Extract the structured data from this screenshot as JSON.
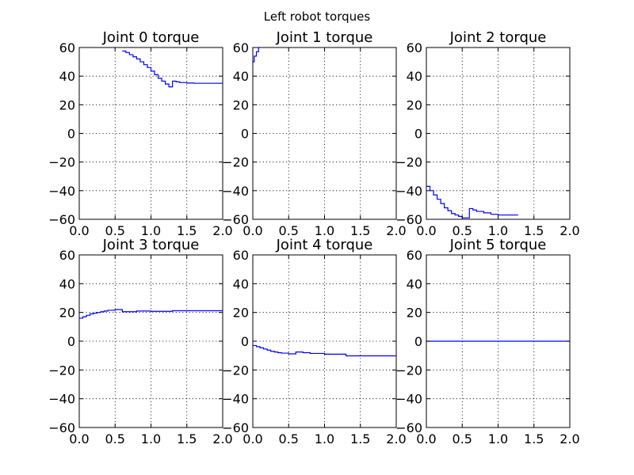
{
  "figure": {
    "suptitle": "Left robot torques"
  },
  "style": {
    "line_color": "#0000ff",
    "grid": true,
    "background": "#ffffff"
  },
  "chart_data": [
    {
      "type": "line",
      "title": "Joint 0 torque",
      "xlabel": "",
      "ylabel": "",
      "xlim": [
        0,
        2
      ],
      "ylim": [
        -60,
        60
      ],
      "grid": true,
      "step": true,
      "xticks": [
        "0.0",
        "0.5",
        "1.0",
        "1.5",
        "2.0"
      ],
      "yticks": [
        "−60",
        "−40",
        "−20",
        "0",
        "20",
        "40",
        "60"
      ],
      "series": [
        {
          "x": [
            0.6,
            0.65,
            0.7,
            0.75,
            0.8,
            0.85,
            0.9,
            0.95,
            1.0,
            1.05,
            1.1,
            1.15,
            1.2,
            1.25,
            1.3,
            1.35,
            1.4,
            1.5,
            1.6,
            1.7,
            2.0
          ],
          "y": [
            57.5,
            56.5,
            55.0,
            53.5,
            52.0,
            50.0,
            48.0,
            46.0,
            43.5,
            41.0,
            38.5,
            36.5,
            34.5,
            32.5,
            36.5,
            36.0,
            35.5,
            35.2,
            35.0,
            35.0,
            35.0
          ]
        }
      ]
    },
    {
      "type": "line",
      "title": "Joint 1 torque",
      "xlabel": "",
      "ylabel": "",
      "xlim": [
        0,
        2
      ],
      "ylim": [
        -60,
        60
      ],
      "grid": true,
      "step": true,
      "xticks": [
        "0.0",
        "0.5",
        "1.0",
        "1.5",
        "2.0"
      ],
      "yticks": [
        "−60",
        "−40",
        "−20",
        "0",
        "20",
        "40",
        "60"
      ],
      "series": [
        {
          "x": [
            0.0,
            0.02,
            0.05,
            0.08,
            0.1
          ],
          "y": [
            50,
            54,
            57,
            60,
            60
          ]
        }
      ]
    },
    {
      "type": "line",
      "title": "Joint 2 torque",
      "xlabel": "",
      "ylabel": "",
      "xlim": [
        0,
        2
      ],
      "ylim": [
        -60,
        60
      ],
      "grid": true,
      "step": true,
      "xticks": [
        "0.0",
        "0.5",
        "1.0",
        "1.5",
        "2.0"
      ],
      "yticks": [
        "−60",
        "−40",
        "−20",
        "0",
        "20",
        "40",
        "60"
      ],
      "series": [
        {
          "x": [
            0.0,
            0.05,
            0.1,
            0.15,
            0.2,
            0.25,
            0.3,
            0.35,
            0.4,
            0.45,
            0.5,
            0.55,
            0.6,
            0.65,
            0.7,
            0.8,
            0.9,
            1.0,
            1.1,
            1.2,
            1.28
          ],
          "y": [
            -37,
            -40,
            -43,
            -46,
            -49,
            -52,
            -54,
            -56,
            -57,
            -58,
            -59,
            -59,
            -52.5,
            -53.5,
            -54.5,
            -55.5,
            -56.5,
            -57,
            -57,
            -57,
            -57
          ]
        }
      ]
    },
    {
      "type": "line",
      "title": "Joint 3 torque",
      "xlabel": "",
      "ylabel": "",
      "xlim": [
        0,
        2
      ],
      "ylim": [
        -60,
        60
      ],
      "grid": true,
      "step": true,
      "xticks": [
        "0.0",
        "0.5",
        "1.0",
        "1.5",
        "2.0"
      ],
      "yticks": [
        "−60",
        "−40",
        "−20",
        "0",
        "20",
        "40",
        "60"
      ],
      "series": [
        {
          "x": [
            0.0,
            0.05,
            0.1,
            0.15,
            0.2,
            0.25,
            0.3,
            0.35,
            0.4,
            0.5,
            0.6,
            0.7,
            0.8,
            1.0,
            1.3,
            2.0
          ],
          "y": [
            16,
            17,
            18,
            19,
            19.5,
            20,
            20.5,
            21,
            21.5,
            22,
            20.5,
            20.5,
            21,
            20.8,
            21.2,
            21.2
          ]
        }
      ]
    },
    {
      "type": "line",
      "title": "Joint 4 torque",
      "xlabel": "",
      "ylabel": "",
      "xlim": [
        0,
        2
      ],
      "ylim": [
        -60,
        60
      ],
      "grid": true,
      "step": true,
      "xticks": [
        "0.0",
        "0.5",
        "1.0",
        "1.5",
        "2.0"
      ],
      "yticks": [
        "−60",
        "−40",
        "−20",
        "0",
        "20",
        "40",
        "60"
      ],
      "series": [
        {
          "x": [
            0.0,
            0.05,
            0.1,
            0.15,
            0.2,
            0.25,
            0.3,
            0.35,
            0.4,
            0.5,
            0.6,
            0.7,
            0.8,
            1.0,
            1.3,
            2.0
          ],
          "y": [
            -3,
            -3.8,
            -4.6,
            -5.4,
            -6.2,
            -7,
            -7.5,
            -8,
            -8.3,
            -8.8,
            -7.5,
            -8,
            -8.5,
            -9,
            -10.2,
            -10.2
          ]
        }
      ]
    },
    {
      "type": "line",
      "title": "Joint 5 torque",
      "xlabel": "",
      "ylabel": "",
      "xlim": [
        0,
        2
      ],
      "ylim": [
        -60,
        60
      ],
      "grid": true,
      "step": true,
      "xticks": [
        "0.0",
        "0.5",
        "1.0",
        "1.5",
        "2.0"
      ],
      "yticks": [
        "−60",
        "−40",
        "−20",
        "0",
        "20",
        "40",
        "60"
      ],
      "series": [
        {
          "x": [
            0.0,
            2.0
          ],
          "y": [
            0,
            0
          ]
        }
      ]
    }
  ]
}
